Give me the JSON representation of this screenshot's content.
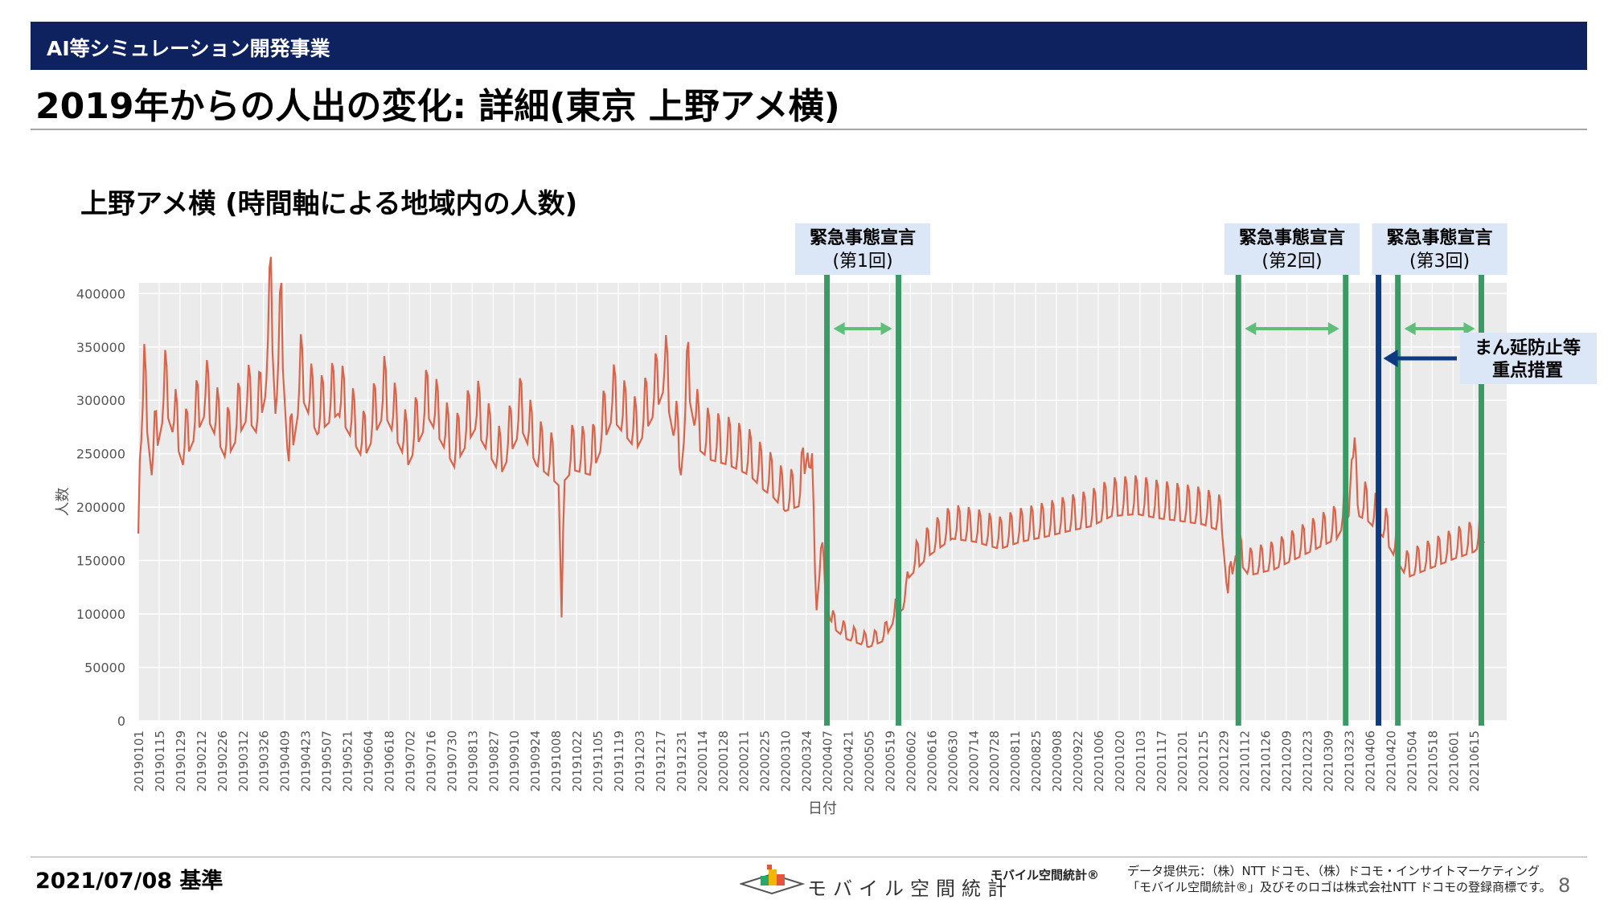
{
  "header": {
    "section_label": "AI等シミュレーション開発事業"
  },
  "page_title": "2019年からの人出の変化: 詳細(東京 上野アメ横)",
  "chart_heading": "上野アメ横 (時間軸による地域内の人数)",
  "chart_data": {
    "type": "line",
    "xlabel": "日付",
    "ylabel": "人数",
    "ylim": [
      0,
      410000
    ],
    "yticks": [
      0,
      50000,
      100000,
      150000,
      200000,
      250000,
      300000,
      350000,
      400000
    ],
    "xlim": [
      "2019-01-01",
      "2021-07-07"
    ],
    "x_tick_labels": [
      "20190101",
      "20190115",
      "20190129",
      "20190212",
      "20190226",
      "20190312",
      "20190326",
      "20190409",
      "20190423",
      "20190507",
      "20190521",
      "20190604",
      "20190618",
      "20190702",
      "20190716",
      "20190730",
      "20190813",
      "20190827",
      "20190910",
      "20190924",
      "20191008",
      "20191022",
      "20191105",
      "20191119",
      "20191203",
      "20191217",
      "20191231",
      "20200114",
      "20200128",
      "20200211",
      "20200225",
      "20200310",
      "20200324",
      "20200407",
      "20200421",
      "20200505",
      "20200519",
      "20200602",
      "20200616",
      "20200630",
      "20200714",
      "20200728",
      "20200811",
      "20200825",
      "20200908",
      "20200922",
      "20201006",
      "20201020",
      "20201103",
      "20201117",
      "20201201",
      "20201215",
      "20201229",
      "20210112",
      "20210126",
      "20210209",
      "20210223",
      "20210309",
      "20210323",
      "20210406",
      "20210420",
      "20210504",
      "20210518",
      "20210601",
      "20210615"
    ],
    "grid": true,
    "line_color": "#d9644a",
    "series": [
      {
        "points": [
          [
            "20190101",
            183000
          ],
          [
            "20190102",
            255000
          ],
          [
            "20190105",
            310000
          ],
          [
            "20190110",
            240000
          ],
          [
            "20190119",
            305000
          ],
          [
            "20190131",
            250000
          ],
          [
            "20190215",
            300000
          ],
          [
            "20190301",
            255000
          ],
          [
            "20190315",
            295000
          ],
          [
            "20190322",
            280000
          ],
          [
            "20190327",
            315000
          ],
          [
            "20190331",
            392000
          ],
          [
            "20190403",
            300000
          ],
          [
            "20190407",
            370000
          ],
          [
            "20190412",
            240000
          ],
          [
            "20190420",
            318000
          ],
          [
            "20190501",
            280000
          ],
          [
            "20190515",
            300000
          ],
          [
            "20190601",
            255000
          ],
          [
            "20190615",
            300000
          ],
          [
            "20190701",
            250000
          ],
          [
            "20190715",
            295000
          ],
          [
            "20190801",
            248000
          ],
          [
            "20190815",
            285000
          ],
          [
            "20190901",
            240000
          ],
          [
            "20190915",
            285000
          ],
          [
            "20190925",
            250000
          ],
          [
            "20191003",
            240000
          ],
          [
            "20191010",
            230000
          ],
          [
            "20191012",
            85000
          ],
          [
            "20191014",
            235000
          ],
          [
            "20191020",
            245000
          ],
          [
            "20191101",
            240000
          ],
          [
            "20191115",
            295000
          ],
          [
            "20191201",
            265000
          ],
          [
            "20191215",
            305000
          ],
          [
            "20191220",
            325000
          ],
          [
            "20191231",
            240000
          ],
          [
            "20200105",
            320000
          ],
          [
            "20200112",
            265000
          ],
          [
            "20200120",
            255000
          ],
          [
            "20200201",
            250000
          ],
          [
            "20200215",
            240000
          ],
          [
            "20200225",
            225000
          ],
          [
            "20200301",
            220000
          ],
          [
            "20200310",
            205000
          ],
          [
            "20200320",
            210000
          ],
          [
            "20200325",
            262000
          ],
          [
            "20200328",
            220000
          ],
          [
            "20200331",
            108000
          ],
          [
            "20200403",
            160000
          ],
          [
            "20200406",
            120000
          ],
          [
            "20200410",
            92000
          ],
          [
            "20200420",
            80000
          ],
          [
            "20200505",
            72000
          ],
          [
            "20200515",
            78000
          ],
          [
            "20200520",
            92000
          ],
          [
            "20200525",
            105000
          ],
          [
            "20200530",
            112000
          ],
          [
            "20200601",
            140000
          ],
          [
            "20200615",
            162000
          ],
          [
            "20200630",
            178000
          ],
          [
            "20200715",
            175000
          ],
          [
            "20200801",
            168000
          ],
          [
            "20200815",
            175000
          ],
          [
            "20200901",
            180000
          ],
          [
            "20200915",
            185000
          ],
          [
            "20201001",
            190000
          ],
          [
            "20201015",
            200000
          ],
          [
            "20201101",
            202000
          ],
          [
            "20201115",
            198000
          ],
          [
            "20201201",
            195000
          ],
          [
            "20201215",
            192000
          ],
          [
            "20201228",
            185000
          ],
          [
            "20210101",
            118000
          ],
          [
            "20210106",
            160000
          ],
          [
            "20210115",
            142000
          ],
          [
            "20210201",
            148000
          ],
          [
            "20210215",
            158000
          ],
          [
            "20210301",
            168000
          ],
          [
            "20210315",
            178000
          ],
          [
            "20210323",
            200000
          ],
          [
            "20210325",
            255000
          ],
          [
            "20210330",
            200000
          ],
          [
            "20210405",
            195000
          ],
          [
            "20210415",
            180000
          ],
          [
            "20210425",
            155000
          ],
          [
            "20210501",
            140000
          ],
          [
            "20210515",
            148000
          ],
          [
            "20210601",
            158000
          ],
          [
            "20210615",
            165000
          ],
          [
            "20210622",
            175000
          ]
        ]
      }
    ]
  },
  "events": [
    {
      "title": "緊急事態宣言",
      "subtitle": "(第1回)",
      "start": "2020-04-07",
      "end": "2020-05-25",
      "color": "#3a9a66"
    },
    {
      "title": "緊急事態宣言",
      "subtitle": "(第2回)",
      "start": "2021-01-08",
      "end": "2021-03-21",
      "color": "#3a9a66"
    },
    {
      "title": "緊急事態宣言",
      "subtitle": "(第3回)",
      "start": "2021-04-25",
      "end": "2021-06-20",
      "color": "#3a9a66"
    }
  ],
  "priority_measure": {
    "line1": "まん延防止等",
    "line2": "重点措置",
    "start": "2021-04-12",
    "color": "#0d3b82"
  },
  "footer": {
    "date": "2021/07/08 基準",
    "logo_text": "モバイル空間統計",
    "brand": "モバイル空間統計®",
    "provider_line1": "データ提供元：（株）NTT ドコモ、（株）ドコモ・インサイトマーケティング",
    "provider_line2": "「モバイル空間統計®」及びそのロゴは株式会社NTT ドコモの登録商標です。",
    "page_number": "8"
  }
}
